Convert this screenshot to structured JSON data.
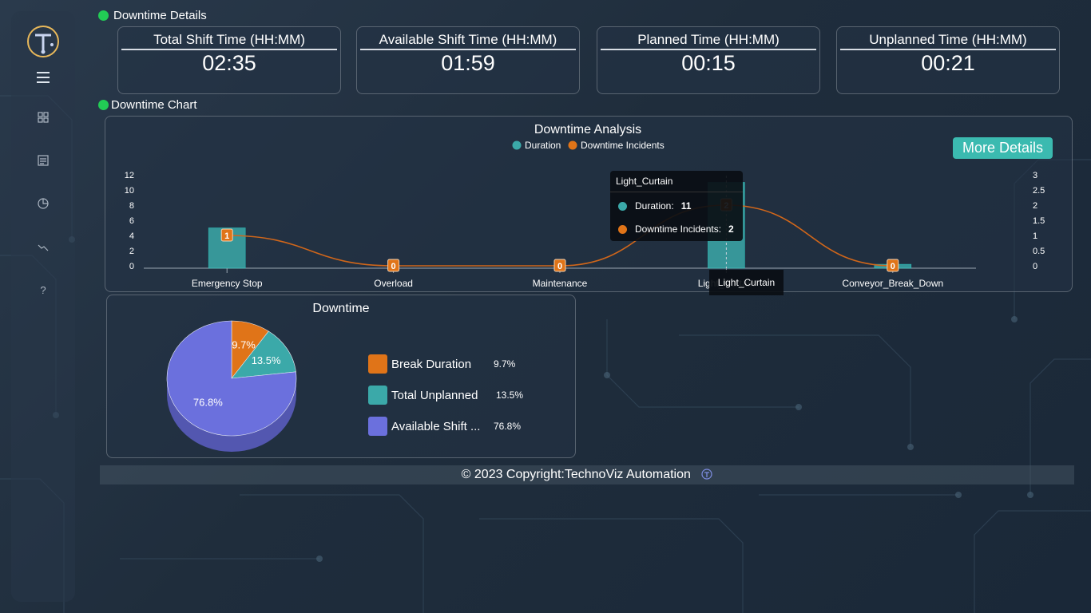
{
  "sections": {
    "details_title": "Downtime Details",
    "chart_title": "Downtime Chart"
  },
  "cards": [
    {
      "label": "Total Shift Time (HH:MM)",
      "value": "02:35"
    },
    {
      "label": "Available Shift Time (HH:MM)",
      "value": "01:59"
    },
    {
      "label": "Planned Time (HH:MM)",
      "value": "00:15"
    },
    {
      "label": "Unplanned Time (HH:MM)",
      "value": "00:21"
    }
  ],
  "colors": {
    "duration": "#3ba9a9",
    "incidents": "#e07418",
    "available": "#6b70dd",
    "accent": "#3bbab0"
  },
  "bar_chart": {
    "title": "Downtime Analysis",
    "more_details_label": "More Details",
    "legend": [
      "Duration",
      "Downtime Incidents"
    ],
    "categories": [
      "Emergency Stop",
      "Overload",
      "Maintenance",
      "Light_Curtain",
      "Conveyor_Break_Down"
    ],
    "duration": [
      5,
      0,
      0,
      11,
      0.2
    ],
    "incidents": [
      1,
      0,
      0,
      2,
      0
    ],
    "incident_labels": [
      "1",
      "0",
      "0",
      "2",
      "0"
    ],
    "left_ticks": [
      "12",
      "10",
      "8",
      "6",
      "4",
      "2",
      "0"
    ],
    "right_ticks": [
      "3",
      "2.5",
      "2",
      "1.5",
      "1",
      "0.5",
      "0"
    ],
    "tooltip": {
      "title": "Light_Curtain",
      "duration_label": "Duration:",
      "duration_value": "11",
      "incidents_label": "Downtime Incidents:",
      "incidents_value": "2"
    },
    "hover_category": "Light_Curtain"
  },
  "pie": {
    "title": "Downtime",
    "slices": [
      {
        "name": "Break Duration",
        "value": 9.7,
        "label": "9.7%",
        "legend": "Break Duration",
        "color": "#e07418"
      },
      {
        "name": "Total Unplanned",
        "value": 13.5,
        "label": "13.5%",
        "legend": "Total Unplanned",
        "color": "#3ba9a9"
      },
      {
        "name": "Available Shift Time",
        "value": 76.8,
        "label": "76.8%",
        "legend": "Available Shift ...",
        "color": "#6b70dd"
      }
    ]
  },
  "footer": {
    "text": "© 2023 Copyright:TechnoViz Automation"
  },
  "chart_data": [
    {
      "type": "bar",
      "title": "Downtime Analysis",
      "categories": [
        "Emergency Stop",
        "Overload",
        "Maintenance",
        "Light_Curtain",
        "Conveyor_Break_Down"
      ],
      "series": [
        {
          "name": "Duration",
          "type": "bar",
          "values": [
            5,
            0,
            0,
            11,
            0.2
          ]
        },
        {
          "name": "Downtime Incidents",
          "type": "line",
          "axis": "right",
          "values": [
            1,
            0,
            0,
            2,
            0
          ]
        }
      ],
      "ylim": [
        0,
        12
      ],
      "y2lim": [
        0,
        3
      ],
      "legend": "top-center"
    },
    {
      "type": "pie",
      "title": "Downtime",
      "categories": [
        "Break Duration",
        "Total Unplanned",
        "Available Shift Time"
      ],
      "values": [
        9.7,
        13.5,
        76.8
      ],
      "legend": "right"
    }
  ]
}
